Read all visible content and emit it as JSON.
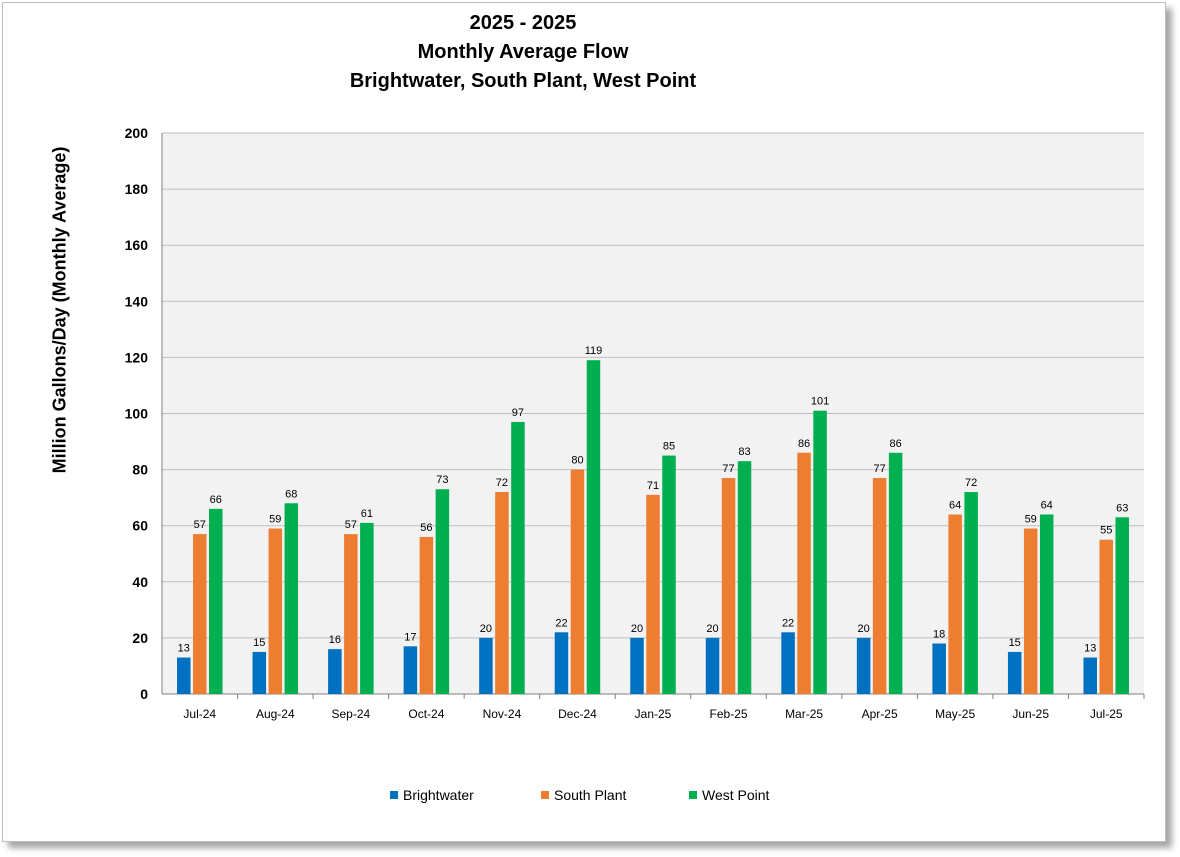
{
  "chart_data": {
    "type": "bar",
    "title": "2025 - 2025",
    "subtitle1": "Monthly Average Flow",
    "subtitle2": "Brightwater, South Plant, West Point",
    "xlabel": "",
    "ylabel": "Million Gallons/Day (Monthly Average)",
    "ylim": [
      0,
      200
    ],
    "yticks": [
      0,
      20,
      40,
      60,
      80,
      100,
      120,
      140,
      160,
      180,
      200
    ],
    "grid": true,
    "legend": "bottom",
    "categories": [
      "Jul-24",
      "Aug-24",
      "Sep-24",
      "Oct-24",
      "Nov-24",
      "Dec-24",
      "Jan-25",
      "Feb-25",
      "Mar-25",
      "Apr-25",
      "May-25",
      "Jun-25",
      "Jul-25"
    ],
    "series": [
      {
        "name": "Brightwater",
        "color": "#0070c0",
        "values": [
          13,
          15,
          16,
          17,
          20,
          22,
          20,
          20,
          22,
          20,
          18,
          15,
          13
        ]
      },
      {
        "name": "South Plant",
        "color": "#ed7d31",
        "values": [
          57,
          59,
          57,
          56,
          72,
          80,
          71,
          77,
          86,
          77,
          64,
          59,
          55
        ]
      },
      {
        "name": "West Point",
        "color": "#00b050",
        "values": [
          66,
          68,
          61,
          73,
          97,
          119,
          85,
          83,
          101,
          86,
          72,
          64,
          63
        ]
      }
    ]
  }
}
